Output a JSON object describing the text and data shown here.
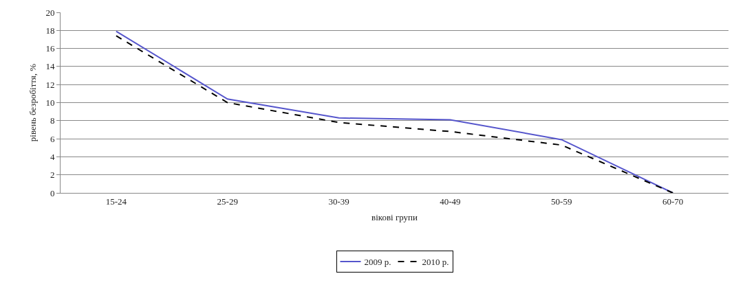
{
  "chart_data": {
    "type": "line",
    "xlabel": "вікові групи",
    "ylabel": "рівень безробіття, %",
    "categories": [
      "15-24",
      "25-29",
      "30-39",
      "40-49",
      "50-59",
      "60-70"
    ],
    "series": [
      {
        "name": "2009 р.",
        "color": "#5555cc",
        "line_style": "solid",
        "values": [
          17.9,
          10.4,
          8.3,
          8.1,
          5.9,
          0
        ]
      },
      {
        "name": "2010 р.",
        "color": "#000000",
        "line_style": "dashed",
        "values": [
          17.4,
          10.0,
          7.8,
          6.8,
          5.3,
          0
        ]
      }
    ],
    "ylim": [
      0,
      20
    ],
    "yticks": [
      0,
      2,
      4,
      6,
      8,
      10,
      12,
      14,
      16,
      18,
      20
    ],
    "grid": "y",
    "legend": "bottom",
    "marker": "none"
  }
}
